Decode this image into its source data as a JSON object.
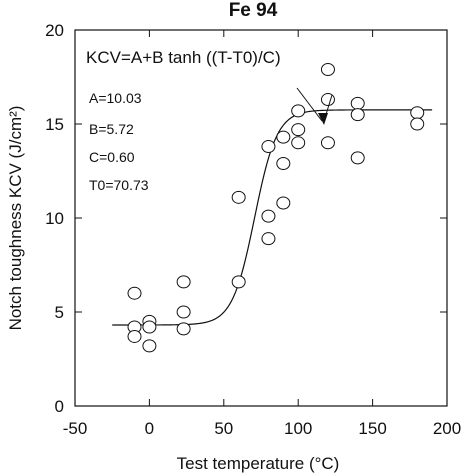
{
  "chart_data": {
    "type": "scatter",
    "title": "Fe 94",
    "xlabel": "Test temperature (°C)",
    "ylabel": "Notch toughness KCV (J/cm²)",
    "xlim": [
      -50,
      200
    ],
    "ylim": [
      0,
      20
    ],
    "xticks": [
      -50,
      0,
      50,
      100,
      150,
      200
    ],
    "yticks": [
      0,
      5,
      10,
      15,
      20
    ],
    "grid": false,
    "series": [
      {
        "points": [
          {
            "x": -10,
            "y": 6.0
          },
          {
            "x": -10,
            "y": 4.2
          },
          {
            "x": -10,
            "y": 3.7
          },
          {
            "x": 0,
            "y": 4.5
          },
          {
            "x": 0,
            "y": 4.2
          },
          {
            "x": 0,
            "y": 3.2
          },
          {
            "x": 23,
            "y": 6.6
          },
          {
            "x": 23,
            "y": 5.0
          },
          {
            "x": 23,
            "y": 4.1
          },
          {
            "x": 60,
            "y": 11.1
          },
          {
            "x": 60,
            "y": 6.6
          },
          {
            "x": 80,
            "y": 13.8
          },
          {
            "x": 80,
            "y": 10.1
          },
          {
            "x": 80,
            "y": 8.9
          },
          {
            "x": 90,
            "y": 14.3
          },
          {
            "x": 90,
            "y": 12.9
          },
          {
            "x": 90,
            "y": 10.8
          },
          {
            "x": 100,
            "y": 15.7
          },
          {
            "x": 100,
            "y": 14.7
          },
          {
            "x": 100,
            "y": 14.0
          },
          {
            "x": 120,
            "y": 17.9
          },
          {
            "x": 120,
            "y": 16.3
          },
          {
            "x": 120,
            "y": 14.0
          },
          {
            "x": 140,
            "y": 16.1
          },
          {
            "x": 140,
            "y": 15.5
          },
          {
            "x": 140,
            "y": 13.2
          },
          {
            "x": 180,
            "y": 15.6
          },
          {
            "x": 180,
            "y": 15.0
          }
        ]
      }
    ],
    "fit": {
      "A": 10.03,
      "B": 5.72,
      "C": 0.6,
      "T0": 70.73
    },
    "annotations": {
      "equation": "KCV=A+B tanh ((T-T0)/C)",
      "params": [
        "A=10.03",
        "B=5.72",
        "C=0.60",
        "T0=70.73"
      ]
    }
  }
}
